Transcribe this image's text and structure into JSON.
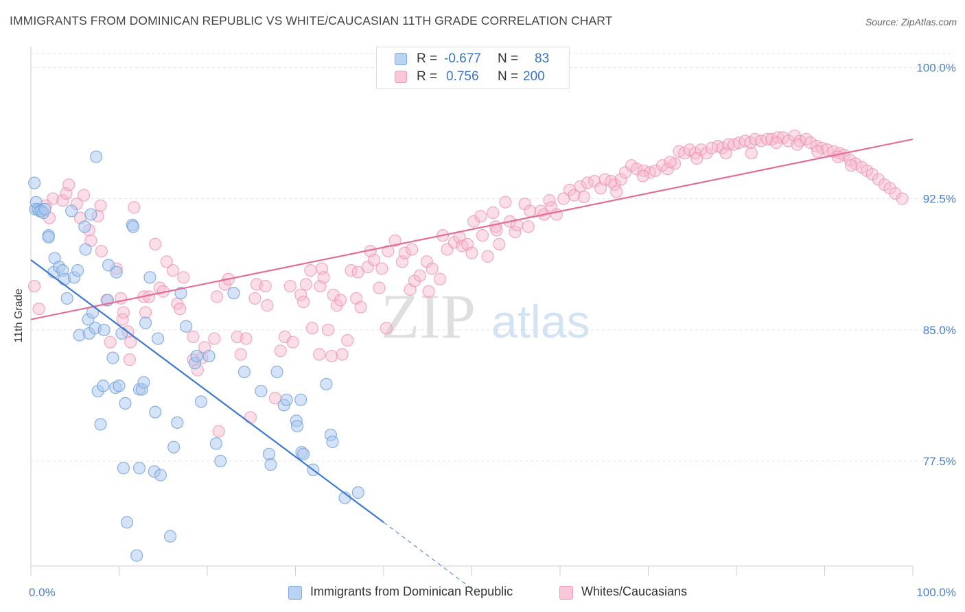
{
  "title": "IMMIGRANTS FROM DOMINICAN REPUBLIC VS WHITE/CAUCASIAN 11TH GRADE CORRELATION CHART",
  "source": "Source: ZipAtlas.com",
  "watermark": {
    "part1": "ZIP",
    "part2": "atlas"
  },
  "colors": {
    "blue_fill": "#a9c8f0",
    "blue_stroke": "#6f9fd8",
    "blue_line": "#3b78d0",
    "pink_fill": "#f7b9cc",
    "pink_stroke": "#ec8fae",
    "pink_line": "#e46c97",
    "axis_text": "#4a7fc9",
    "grid": "#e3e3e3"
  },
  "legend_top": {
    "rows": [
      {
        "r_label": "R =",
        "r_value": "-0.677",
        "n_label": "N =",
        "n_value": "83"
      },
      {
        "r_label": "R =",
        "r_value": "0.756",
        "n_label": "N =",
        "n_value": "200"
      }
    ]
  },
  "legend_bottom": {
    "items": [
      {
        "label": "Immigrants from Dominican Republic"
      },
      {
        "label": "Whites/Caucasians"
      }
    ]
  },
  "chart_data": {
    "type": "scatter",
    "title": "IMMIGRANTS FROM DOMINICAN REPUBLIC VS WHITE/CAUCASIAN 11TH GRADE CORRELATION CHART",
    "xlabel": "",
    "ylabel": "11th Grade",
    "xlim": [
      0,
      100
    ],
    "ylim": [
      71.5,
      100.8
    ],
    "x_tick_labels": [
      "0.0%",
      "100.0%"
    ],
    "y_ticks": [
      {
        "value": 100.0,
        "label": "100.0%"
      },
      {
        "value": 92.5,
        "label": "92.5%"
      },
      {
        "value": 85.0,
        "label": "85.0%"
      },
      {
        "value": 77.5,
        "label": "77.5%"
      }
    ],
    "grid": true,
    "legend_position": "top-center",
    "series": [
      {
        "name": "Immigrants from Dominican Republic",
        "color": "blue",
        "R": -0.677,
        "N": 83,
        "trend": {
          "x": [
            0,
            40
          ],
          "y": [
            89.0,
            74.0
          ],
          "dashed_to": [
            50,
            70.2
          ]
        },
        "points": [
          [
            0.4,
            93.4
          ],
          [
            0.5,
            91.9
          ],
          [
            0.6,
            92.3
          ],
          [
            0.8,
            91.9
          ],
          [
            1.0,
            91.8
          ],
          [
            1.2,
            91.8
          ],
          [
            1.4,
            91.7
          ],
          [
            1.6,
            91.9
          ],
          [
            2.0,
            90.4
          ],
          [
            2.0,
            90.3
          ],
          [
            2.6,
            88.3
          ],
          [
            2.7,
            89.1
          ],
          [
            3.2,
            88.6
          ],
          [
            3.6,
            88.4
          ],
          [
            3.8,
            87.9
          ],
          [
            4.1,
            86.8
          ],
          [
            4.6,
            91.8
          ],
          [
            4.9,
            88.0
          ],
          [
            5.3,
            88.4
          ],
          [
            5.5,
            84.7
          ],
          [
            6.1,
            90.9
          ],
          [
            6.2,
            89.6
          ],
          [
            6.5,
            85.6
          ],
          [
            6.6,
            84.8
          ],
          [
            6.8,
            91.6
          ],
          [
            7.0,
            86.0
          ],
          [
            7.3,
            85.1
          ],
          [
            7.4,
            94.9
          ],
          [
            7.6,
            81.5
          ],
          [
            7.9,
            79.6
          ],
          [
            8.2,
            81.8
          ],
          [
            8.3,
            85.0
          ],
          [
            8.7,
            86.7
          ],
          [
            8.8,
            88.7
          ],
          [
            9.3,
            83.4
          ],
          [
            9.6,
            81.7
          ],
          [
            9.7,
            88.3
          ],
          [
            10.0,
            81.8
          ],
          [
            10.3,
            84.8
          ],
          [
            10.5,
            77.1
          ],
          [
            10.7,
            80.8
          ],
          [
            10.9,
            74.0
          ],
          [
            11.5,
            91.0
          ],
          [
            11.6,
            90.9
          ],
          [
            12.0,
            72.1
          ],
          [
            12.3,
            81.6
          ],
          [
            12.3,
            77.1
          ],
          [
            12.6,
            81.6
          ],
          [
            12.8,
            82.0
          ],
          [
            13.0,
            85.4
          ],
          [
            13.5,
            88.0
          ],
          [
            14.0,
            76.9
          ],
          [
            14.1,
            80.3
          ],
          [
            14.4,
            84.5
          ],
          [
            14.7,
            76.7
          ],
          [
            15.8,
            73.2
          ],
          [
            16.2,
            78.3
          ],
          [
            16.6,
            79.7
          ],
          [
            17.0,
            87.1
          ],
          [
            17.6,
            85.2
          ],
          [
            18.6,
            83.1
          ],
          [
            18.8,
            83.5
          ],
          [
            19.3,
            80.9
          ],
          [
            20.2,
            83.5
          ],
          [
            21.0,
            78.5
          ],
          [
            21.5,
            77.5
          ],
          [
            23.0,
            87.1
          ],
          [
            24.2,
            82.6
          ],
          [
            26.1,
            81.5
          ],
          [
            27.0,
            77.9
          ],
          [
            27.2,
            77.3
          ],
          [
            27.9,
            82.6
          ],
          [
            28.7,
            80.7
          ],
          [
            29.0,
            81.0
          ],
          [
            30.1,
            79.8
          ],
          [
            30.2,
            79.5
          ],
          [
            30.6,
            81.0
          ],
          [
            30.7,
            78.0
          ],
          [
            30.9,
            77.9
          ],
          [
            32.0,
            77.0
          ],
          [
            33.5,
            81.9
          ],
          [
            34.0,
            79.0
          ],
          [
            34.2,
            78.6
          ],
          [
            35.6,
            75.4
          ],
          [
            37.1,
            75.7
          ]
        ]
      },
      {
        "name": "Whites/Caucasians",
        "color": "pink",
        "R": 0.756,
        "N": 200,
        "trend": {
          "x": [
            0,
            100
          ],
          "y": [
            85.6,
            95.9
          ]
        },
        "points": [
          [
            0.4,
            87.5
          ],
          [
            0.9,
            86.2
          ],
          [
            1.7,
            92.1
          ],
          [
            2.1,
            91.4
          ],
          [
            2.5,
            92.5
          ],
          [
            3.6,
            92.4
          ],
          [
            4.0,
            92.8
          ],
          [
            4.3,
            93.3
          ],
          [
            5.2,
            92.2
          ],
          [
            5.6,
            91.4
          ],
          [
            6.0,
            92.7
          ],
          [
            6.6,
            90.7
          ],
          [
            6.8,
            90.1
          ],
          [
            7.6,
            91.5
          ],
          [
            7.9,
            92.1
          ],
          [
            8.0,
            89.5
          ],
          [
            8.6,
            86.7
          ],
          [
            9.0,
            84.3
          ],
          [
            9.7,
            88.5
          ],
          [
            10.2,
            86.8
          ],
          [
            10.4,
            85.6
          ],
          [
            10.5,
            86.0
          ],
          [
            11.0,
            84.9
          ],
          [
            11.2,
            83.3
          ],
          [
            11.3,
            84.3
          ],
          [
            11.7,
            92.0
          ],
          [
            12.8,
            86.9
          ],
          [
            13.0,
            86.0
          ],
          [
            13.4,
            86.9
          ],
          [
            14.1,
            89.9
          ],
          [
            14.6,
            87.4
          ],
          [
            15.0,
            87.2
          ],
          [
            15.4,
            88.9
          ],
          [
            16.1,
            88.4
          ],
          [
            16.6,
            86.5
          ],
          [
            16.9,
            86.2
          ],
          [
            17.3,
            88.0
          ],
          [
            18.4,
            84.6
          ],
          [
            18.4,
            83.3
          ],
          [
            18.9,
            82.7
          ],
          [
            19.4,
            83.4
          ],
          [
            19.7,
            84.0
          ],
          [
            20.8,
            84.5
          ],
          [
            21.1,
            86.9
          ],
          [
            21.3,
            79.2
          ],
          [
            22.0,
            87.6
          ],
          [
            22.4,
            87.9
          ],
          [
            23.4,
            84.6
          ],
          [
            23.8,
            83.6
          ],
          [
            24.4,
            84.5
          ],
          [
            24.9,
            80.0
          ],
          [
            25.4,
            86.8
          ],
          [
            25.6,
            87.6
          ],
          [
            26.6,
            87.5
          ],
          [
            26.8,
            86.4
          ],
          [
            27.7,
            81.1
          ],
          [
            28.3,
            83.8
          ],
          [
            28.8,
            84.6
          ],
          [
            29.4,
            87.5
          ],
          [
            29.7,
            84.3
          ],
          [
            30.6,
            87.0
          ],
          [
            30.9,
            86.6
          ],
          [
            31.2,
            87.6
          ],
          [
            31.7,
            88.4
          ],
          [
            31.9,
            85.1
          ],
          [
            32.7,
            83.6
          ],
          [
            32.8,
            87.5
          ],
          [
            33.0,
            88.5
          ],
          [
            33.2,
            88.0
          ],
          [
            33.7,
            85.0
          ],
          [
            34.1,
            83.5
          ],
          [
            34.3,
            87.0
          ],
          [
            34.7,
            86.4
          ],
          [
            35.1,
            86.7
          ],
          [
            35.3,
            83.6
          ],
          [
            35.9,
            84.4
          ],
          [
            36.3,
            88.4
          ],
          [
            36.9,
            86.8
          ],
          [
            37.1,
            88.3
          ],
          [
            37.4,
            86.3
          ],
          [
            38.2,
            88.6
          ],
          [
            38.5,
            89.5
          ],
          [
            38.9,
            89.0
          ],
          [
            39.5,
            87.4
          ],
          [
            39.8,
            88.5
          ],
          [
            40.3,
            85.1
          ],
          [
            40.5,
            89.5
          ],
          [
            41.3,
            90.1
          ],
          [
            42.1,
            88.9
          ],
          [
            42.4,
            89.4
          ],
          [
            43.0,
            87.3
          ],
          [
            43.2,
            89.6
          ],
          [
            43.5,
            87.8
          ],
          [
            44.1,
            88.1
          ],
          [
            44.9,
            88.9
          ],
          [
            45.1,
            87.2
          ],
          [
            45.5,
            88.5
          ],
          [
            46.4,
            87.9
          ],
          [
            46.7,
            90.4
          ],
          [
            47.2,
            89.6
          ],
          [
            48.0,
            90.0
          ],
          [
            48.6,
            90.3
          ],
          [
            48.9,
            89.8
          ],
          [
            49.5,
            89.9
          ],
          [
            50.0,
            89.4
          ],
          [
            50.2,
            91.2
          ],
          [
            51.0,
            91.5
          ],
          [
            51.2,
            90.4
          ],
          [
            51.8,
            89.2
          ],
          [
            52.4,
            91.7
          ],
          [
            52.7,
            90.9
          ],
          [
            52.8,
            90.7
          ],
          [
            53.8,
            92.3
          ],
          [
            54.3,
            91.2
          ],
          [
            54.9,
            90.6
          ],
          [
            55.1,
            91.0
          ],
          [
            56.0,
            92.2
          ],
          [
            56.6,
            91.8
          ],
          [
            57.8,
            91.8
          ],
          [
            58.2,
            91.6
          ],
          [
            58.8,
            92.4
          ],
          [
            59.0,
            92.0
          ],
          [
            60.4,
            92.5
          ],
          [
            61.1,
            93.0
          ],
          [
            61.6,
            92.7
          ],
          [
            62.3,
            93.2
          ],
          [
            63.1,
            93.4
          ],
          [
            63.9,
            93.5
          ],
          [
            64.6,
            93.1
          ],
          [
            65.1,
            93.6
          ],
          [
            65.8,
            93.5
          ],
          [
            66.2,
            93.3
          ],
          [
            66.9,
            93.6
          ],
          [
            67.4,
            94.0
          ],
          [
            68.1,
            94.4
          ],
          [
            68.7,
            94.2
          ],
          [
            69.5,
            94.1
          ],
          [
            70.2,
            94.0
          ],
          [
            70.8,
            94.1
          ],
          [
            71.6,
            94.4
          ],
          [
            72.2,
            94.2
          ],
          [
            73.0,
            94.5
          ],
          [
            73.5,
            95.2
          ],
          [
            74.1,
            95.1
          ],
          [
            74.7,
            95.3
          ],
          [
            75.3,
            95.1
          ],
          [
            76.0,
            95.3
          ],
          [
            76.6,
            95.1
          ],
          [
            77.2,
            95.4
          ],
          [
            77.9,
            95.5
          ],
          [
            78.4,
            95.4
          ],
          [
            79.1,
            95.6
          ],
          [
            79.7,
            95.6
          ],
          [
            80.3,
            95.7
          ],
          [
            81.0,
            95.8
          ],
          [
            81.6,
            95.7
          ],
          [
            82.1,
            95.9
          ],
          [
            82.8,
            95.8
          ],
          [
            83.5,
            95.9
          ],
          [
            84.0,
            95.9
          ],
          [
            84.7,
            96.0
          ],
          [
            85.3,
            96.0
          ],
          [
            85.9,
            95.8
          ],
          [
            86.6,
            96.1
          ],
          [
            87.2,
            95.8
          ],
          [
            87.9,
            95.9
          ],
          [
            88.4,
            95.7
          ],
          [
            89.1,
            95.5
          ],
          [
            89.7,
            95.4
          ],
          [
            90.3,
            95.3
          ],
          [
            91.0,
            95.2
          ],
          [
            91.7,
            95.1
          ],
          [
            92.2,
            95.0
          ],
          [
            92.9,
            94.7
          ],
          [
            93.5,
            94.5
          ],
          [
            94.2,
            94.3
          ],
          [
            94.8,
            94.1
          ],
          [
            95.4,
            93.9
          ],
          [
            96.1,
            93.6
          ],
          [
            96.8,
            93.3
          ],
          [
            97.4,
            93.1
          ],
          [
            98.0,
            92.8
          ],
          [
            98.8,
            92.5
          ],
          [
            93.0,
            94.4
          ],
          [
            91.5,
            94.9
          ],
          [
            89.2,
            95.2
          ],
          [
            86.9,
            95.6
          ],
          [
            84.5,
            95.7
          ],
          [
            81.7,
            95.1
          ],
          [
            78.8,
            95.1
          ],
          [
            75.5,
            94.8
          ],
          [
            72.5,
            94.6
          ],
          [
            69.4,
            93.8
          ],
          [
            66.4,
            92.9
          ],
          [
            62.7,
            92.6
          ],
          [
            59.6,
            91.6
          ],
          [
            56.4,
            90.9
          ],
          [
            53.1,
            89.9
          ]
        ]
      }
    ]
  }
}
